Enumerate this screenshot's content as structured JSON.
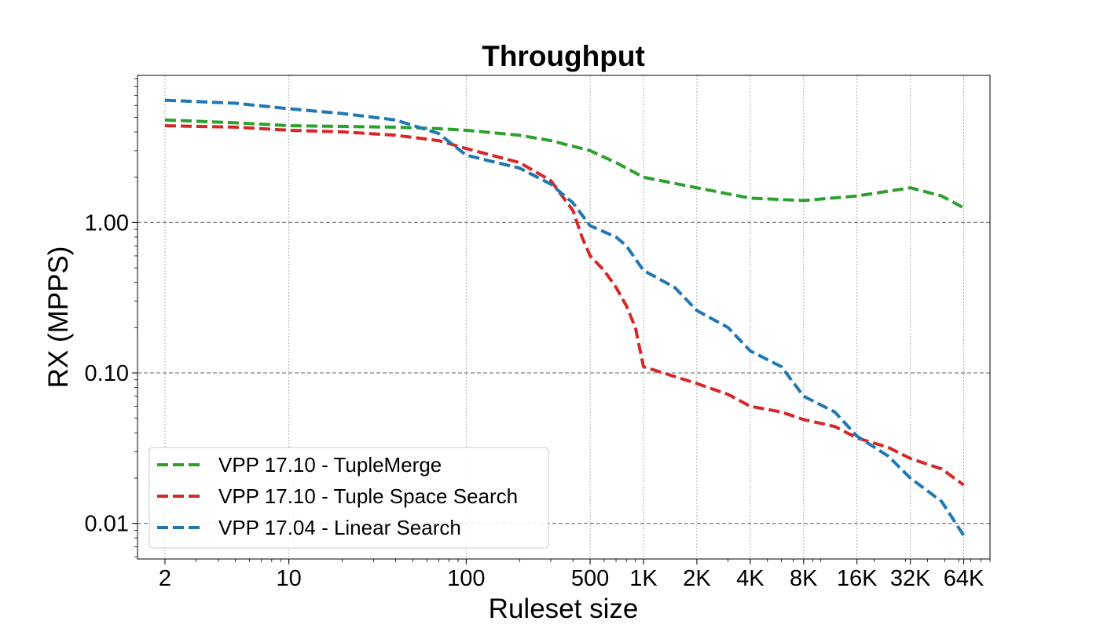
{
  "chart_data": {
    "type": "line",
    "title": "Throughput",
    "xlabel": "Ruleset size",
    "ylabel": "RX (MPPS)",
    "x_scale": "log",
    "y_scale": "log",
    "xlim": [
      1.4,
      90000
    ],
    "ylim": [
      0.0058,
      9.5
    ],
    "x_ticks": [
      {
        "value": 2,
        "label": "2"
      },
      {
        "value": 10,
        "label": "10"
      },
      {
        "value": 100,
        "label": "100"
      },
      {
        "value": 500,
        "label": "500"
      },
      {
        "value": 1000,
        "label": "1K"
      },
      {
        "value": 2000,
        "label": "2K"
      },
      {
        "value": 4000,
        "label": "4K"
      },
      {
        "value": 8000,
        "label": "8K"
      },
      {
        "value": 16000,
        "label": "16K"
      },
      {
        "value": 32000,
        "label": "32K"
      },
      {
        "value": 64000,
        "label": "64K"
      }
    ],
    "y_ticks": [
      {
        "value": 0.01,
        "label": "0.01"
      },
      {
        "value": 0.1,
        "label": "0.10"
      },
      {
        "value": 1,
        "label": "1.00"
      }
    ],
    "grid": "on",
    "legend_position": "lower-left",
    "series": [
      {
        "name": "VPP 17.10 - TupleMerge",
        "color": "#2ca02c",
        "x": [
          2,
          5,
          10,
          20,
          40,
          70,
          100,
          200,
          300,
          500,
          700,
          1000,
          2000,
          4000,
          8000,
          16000,
          32000,
          48000,
          64000
        ],
        "y": [
          4.8,
          4.6,
          4.4,
          4.35,
          4.3,
          4.2,
          4.1,
          3.8,
          3.5,
          3.0,
          2.5,
          2.0,
          1.7,
          1.45,
          1.4,
          1.5,
          1.7,
          1.5,
          1.25
        ]
      },
      {
        "name": "VPP 17.10 - Tuple Space Search",
        "color": "#d62728",
        "x": [
          2,
          5,
          10,
          20,
          40,
          70,
          100,
          200,
          300,
          400,
          450,
          500,
          600,
          700,
          800,
          900,
          1000,
          2000,
          3000,
          4000,
          6000,
          8000,
          12000,
          16000,
          24000,
          32000,
          48000,
          64000
        ],
        "y": [
          4.4,
          4.3,
          4.1,
          4.0,
          3.8,
          3.5,
          3.1,
          2.5,
          1.9,
          1.2,
          0.8,
          0.6,
          0.48,
          0.37,
          0.28,
          0.2,
          0.11,
          0.085,
          0.072,
          0.06,
          0.055,
          0.049,
          0.044,
          0.037,
          0.032,
          0.027,
          0.023,
          0.018
        ]
      },
      {
        "name": "VPP 17.04 - Linear Search",
        "color": "#1f77b4",
        "x": [
          2,
          5,
          10,
          20,
          40,
          70,
          100,
          200,
          300,
          400,
          500,
          700,
          800,
          1000,
          1500,
          2000,
          3000,
          4000,
          6000,
          8000,
          12000,
          16000,
          24000,
          32000,
          48000,
          64000
        ],
        "y": [
          6.5,
          6.2,
          5.7,
          5.3,
          4.8,
          3.9,
          2.8,
          2.3,
          1.8,
          1.35,
          0.95,
          0.8,
          0.7,
          0.48,
          0.37,
          0.26,
          0.2,
          0.14,
          0.11,
          0.07,
          0.055,
          0.038,
          0.028,
          0.02,
          0.014,
          0.0083
        ]
      }
    ]
  }
}
